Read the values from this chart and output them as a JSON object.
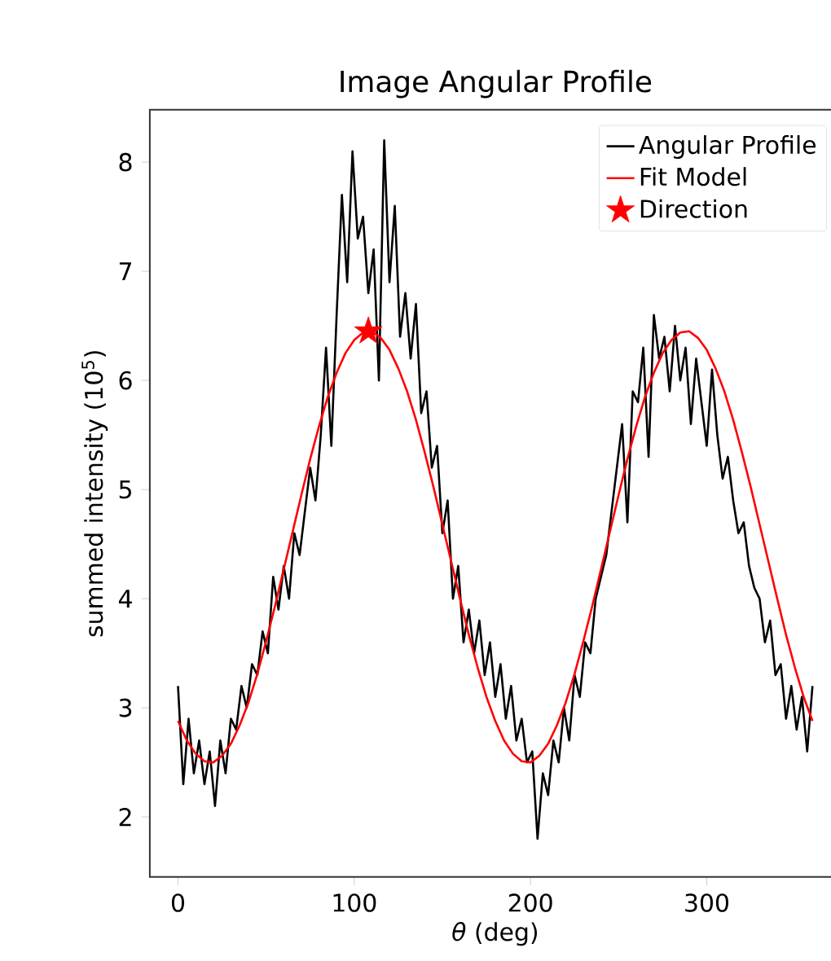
{
  "chart_data": {
    "type": "line",
    "title": "Image Angular Profile",
    "xlabel": "*θ* (deg)",
    "ylabel": "summed intensity (10$^{5}$)",
    "xlim": [
      -16,
      376
    ],
    "ylim": [
      1.45,
      8.48
    ],
    "xticks": [
      0,
      100,
      200,
      300
    ],
    "yticks": [
      2,
      3,
      4,
      5,
      6,
      7,
      8
    ],
    "grid": false,
    "legend": "top right",
    "series": [
      {
        "name": "Angular Profile",
        "color": "#000000",
        "x": [
          0,
          3,
          6,
          9,
          12,
          15,
          18,
          21,
          24,
          27,
          30,
          33,
          36,
          39,
          42,
          45,
          48,
          51,
          54,
          57,
          60,
          63,
          66,
          69,
          72,
          75,
          78,
          81,
          84,
          87,
          90,
          93,
          96,
          99,
          102,
          105,
          108,
          111,
          114,
          117,
          120,
          123,
          126,
          129,
          132,
          135,
          138,
          141,
          144,
          147,
          150,
          153,
          156,
          159,
          162,
          165,
          168,
          171,
          174,
          177,
          180,
          183,
          186,
          189,
          192,
          195,
          198,
          201,
          204,
          207,
          210,
          213,
          216,
          219,
          222,
          225,
          228,
          231,
          234,
          237,
          240,
          243,
          246,
          249,
          252,
          255,
          258,
          261,
          264,
          267,
          270,
          273,
          276,
          279,
          282,
          285,
          288,
          291,
          294,
          297,
          300,
          303,
          306,
          309,
          312,
          315,
          318,
          321,
          324,
          327,
          330,
          333,
          336,
          339,
          342,
          345,
          348,
          351,
          354,
          357,
          360
        ],
        "values": [
          3.2,
          2.3,
          2.9,
          2.4,
          2.7,
          2.3,
          2.6,
          2.1,
          2.7,
          2.4,
          2.9,
          2.8,
          3.2,
          3.0,
          3.4,
          3.3,
          3.7,
          3.5,
          4.2,
          3.9,
          4.3,
          4.0,
          4.6,
          4.4,
          4.8,
          5.2,
          4.9,
          5.5,
          6.3,
          5.4,
          6.6,
          7.7,
          6.9,
          8.1,
          7.3,
          7.5,
          6.8,
          7.2,
          6.0,
          8.2,
          6.9,
          7.6,
          6.4,
          6.8,
          6.2,
          6.7,
          5.7,
          5.9,
          5.2,
          5.4,
          4.6,
          4.9,
          4.0,
          4.3,
          3.6,
          3.9,
          3.5,
          3.8,
          3.3,
          3.6,
          3.1,
          3.4,
          2.9,
          3.2,
          2.7,
          2.9,
          2.5,
          2.6,
          1.8,
          2.4,
          2.2,
          2.7,
          2.5,
          3.0,
          2.7,
          3.3,
          3.1,
          3.6,
          3.5,
          4.0,
          4.2,
          4.4,
          4.8,
          5.2,
          5.6,
          4.7,
          5.9,
          5.8,
          6.3,
          5.3,
          6.6,
          6.2,
          6.4,
          5.9,
          6.5,
          6.0,
          6.3,
          5.6,
          6.2,
          5.8,
          5.4,
          6.1,
          5.5,
          5.1,
          5.3,
          4.9,
          4.6,
          4.7,
          4.3,
          4.1,
          4.0,
          3.6,
          3.8,
          3.3,
          3.4,
          2.9,
          3.2,
          2.8,
          3.1,
          2.6,
          3.2
        ]
      },
      {
        "name": "Fit Model",
        "color": "#ff0000",
        "x": [
          0,
          5,
          10,
          15,
          20,
          25,
          30,
          35,
          40,
          45,
          50,
          55,
          60,
          65,
          70,
          75,
          80,
          85,
          90,
          95,
          100,
          105,
          110,
          115,
          120,
          125,
          130,
          135,
          140,
          145,
          150,
          155,
          160,
          165,
          170,
          175,
          180,
          185,
          190,
          195,
          200,
          205,
          210,
          215,
          220,
          225,
          230,
          235,
          240,
          245,
          250,
          255,
          260,
          265,
          270,
          275,
          280,
          285,
          290,
          295,
          300,
          305,
          310,
          315,
          320,
          325,
          330,
          335,
          340,
          345,
          350,
          355,
          360
        ],
        "values": [
          2.88,
          2.7,
          2.58,
          2.51,
          2.5,
          2.56,
          2.67,
          2.84,
          3.05,
          3.31,
          3.61,
          3.93,
          4.27,
          4.61,
          4.95,
          5.28,
          5.58,
          5.85,
          6.07,
          6.25,
          6.37,
          6.44,
          6.45,
          6.39,
          6.28,
          6.11,
          5.9,
          5.64,
          5.34,
          5.02,
          4.68,
          4.34,
          4.0,
          3.67,
          3.37,
          3.1,
          2.88,
          2.7,
          2.58,
          2.51,
          2.5,
          2.56,
          2.67,
          2.84,
          3.05,
          3.31,
          3.61,
          3.93,
          4.27,
          4.61,
          4.95,
          5.28,
          5.58,
          5.85,
          6.07,
          6.25,
          6.37,
          6.44,
          6.45,
          6.39,
          6.28,
          6.11,
          5.9,
          5.64,
          5.34,
          5.02,
          4.68,
          4.34,
          4.0,
          3.67,
          3.37,
          3.1,
          2.88
        ]
      },
      {
        "name": "Direction",
        "type": "scatter",
        "marker": "star",
        "color": "#ff0000",
        "x": [
          108
        ],
        "values": [
          6.45
        ]
      }
    ]
  }
}
